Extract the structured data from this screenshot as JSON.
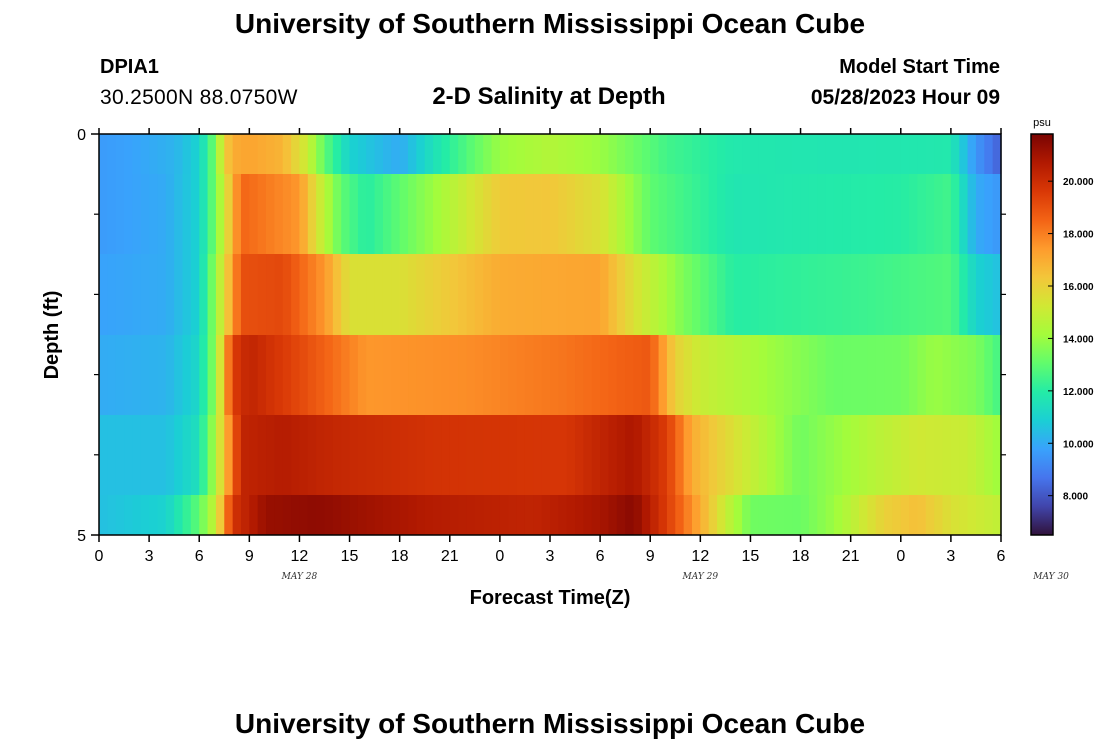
{
  "page": {
    "title": "University of Southern Mississippi Ocean Cube",
    "station_id": "DPIA1",
    "coordinates": "30.2500N  88.0750W",
    "subtitle": "2-D Salinity at Depth",
    "model_start_label": "Model Start Time",
    "model_start_value": "05/28/2023 Hour 09",
    "footer_title": "University of Southern Mississippi Ocean Cube"
  },
  "chart_data": {
    "type": "heatmap",
    "title": "2-D Salinity at Depth",
    "xlabel": "Forecast Time(Z)",
    "ylabel": "Depth (ft)",
    "x_tick_labels": [
      "0",
      "3",
      "6",
      "9",
      "12",
      "15",
      "18",
      "21",
      "0",
      "3",
      "6",
      "9",
      "12",
      "15",
      "18",
      "21",
      "0",
      "3",
      "6"
    ],
    "date_labels": [
      {
        "label": "MAY 28",
        "at_hour": 12
      },
      {
        "label": "MAY 29",
        "at_hour": 36
      },
      {
        "label": "MAY 30",
        "at_hour": 57
      }
    ],
    "x_range_hours": [
      0,
      54
    ],
    "y_range_ft": [
      0,
      5
    ],
    "y_tick_labels": [
      "0",
      "5"
    ],
    "y_minor_ticks": [
      1,
      2,
      3,
      4
    ],
    "colorbar": {
      "unit": "psu",
      "range": [
        6.5,
        21.8
      ],
      "tick_labels": [
        "8.000",
        "10.000",
        "12.000",
        "14.000",
        "16.000",
        "18.000",
        "20.000"
      ],
      "tick_values": [
        8,
        10,
        12,
        14,
        16,
        18,
        20
      ],
      "colors": [
        "#30123b",
        "#4145ab",
        "#4675ed",
        "#39a2fc",
        "#1bcfd4",
        "#24eca6",
        "#61fc6c",
        "#a4fc3b",
        "#d1e834",
        "#f3c63a",
        "#fe9b2d",
        "#f36315",
        "#d93806",
        "#b11901",
        "#7a0402"
      ]
    },
    "depth_rows": [
      {
        "depth_band": "0-0.5 ft",
        "hours": [
          0,
          2,
          4.5,
          6,
          7,
          7.5,
          8,
          9,
          11,
          12.5,
          13.5,
          15,
          18,
          20,
          24,
          27,
          30,
          34,
          38,
          44,
          51,
          52.5,
          54
        ],
        "values": [
          9.6,
          9.8,
          10.2,
          11.0,
          13.5,
          16.0,
          17.0,
          17.2,
          16.8,
          15.0,
          13.0,
          11.0,
          10.0,
          11.5,
          14.0,
          14.5,
          14.0,
          12.5,
          11.8,
          11.7,
          11.8,
          9.5,
          8.2
        ]
      },
      {
        "depth_band": "0.5-1.5 ft",
        "hours": [
          0,
          4,
          6,
          7,
          8.5,
          12,
          13,
          14.5,
          16,
          20,
          24,
          27,
          30,
          33,
          38,
          48,
          51,
          52.5,
          54
        ],
        "values": [
          9.6,
          10.0,
          11.0,
          13.5,
          18.5,
          17.5,
          15.5,
          13.0,
          12.0,
          14.0,
          16.2,
          16.3,
          15.5,
          13.0,
          11.7,
          12.0,
          12.5,
          10.0,
          9.5
        ]
      },
      {
        "depth_band": "1.5-2.5 ft",
        "hours": [
          0,
          4,
          6,
          7,
          8.5,
          11,
          13.5,
          15,
          18,
          24,
          30,
          32,
          35,
          38,
          46,
          51,
          52.5,
          54
        ],
        "values": [
          9.8,
          10.0,
          11.0,
          14.0,
          19.0,
          19.2,
          17.5,
          15.5,
          15.5,
          17.0,
          17.2,
          15.5,
          13.5,
          12.0,
          12.4,
          12.8,
          11.0,
          10.5
        ]
      },
      {
        "depth_band": "2.5-3.5 ft",
        "hours": [
          0,
          4,
          6,
          7,
          8,
          9,
          12,
          16,
          22,
          28,
          33,
          34.5,
          36,
          44,
          48,
          50,
          52.5,
          54
        ],
        "values": [
          10.0,
          10.2,
          11.2,
          14.0,
          19.5,
          20.3,
          19.2,
          17.5,
          17.7,
          18.2,
          18.8,
          16.0,
          15.0,
          13.2,
          13.3,
          14.0,
          13.5,
          12.5
        ]
      },
      {
        "depth_band": "3.5-4.5 ft",
        "hours": [
          0,
          4,
          6,
          7,
          8.5,
          11,
          14,
          20,
          28,
          30,
          32,
          34,
          35.5,
          38,
          42,
          46,
          49,
          52,
          54
        ],
        "values": [
          10.5,
          10.5,
          11.5,
          14.5,
          20.3,
          20.6,
          20.2,
          19.8,
          19.7,
          20.3,
          20.8,
          19.5,
          17.0,
          15.5,
          13.3,
          14.5,
          15.2,
          15.0,
          14.0
        ]
      },
      {
        "depth_band": "4.5-5 ft",
        "hours": [
          0,
          4,
          6,
          7,
          8,
          10,
          13,
          20,
          26,
          30,
          32,
          34,
          36,
          37.5,
          39,
          42,
          44,
          47,
          49,
          51,
          54
        ],
        "values": [
          10.5,
          11.0,
          13.0,
          15.0,
          19.8,
          21.2,
          21.4,
          20.6,
          20.3,
          20.9,
          21.5,
          19.5,
          17.0,
          15.0,
          13.3,
          13.2,
          14.0,
          16.0,
          16.5,
          15.5,
          14.8
        ]
      }
    ]
  }
}
